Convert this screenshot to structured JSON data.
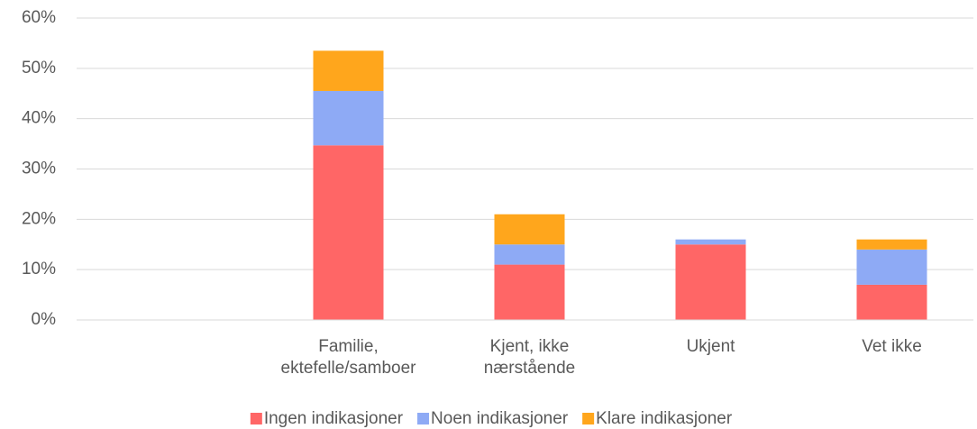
{
  "chart_data": {
    "type": "stacked_bar",
    "categories": [
      null,
      "Familie, ektefelle/samboer",
      "Kjent, ikke nærstående",
      "Ukjent",
      "Vet ikke"
    ],
    "series": [
      {
        "name": "Ingen indikasjoner",
        "color": "#ff6666",
        "values": [
          null,
          34.7,
          11,
          15,
          7
        ]
      },
      {
        "name": "Noen indikasjoner",
        "color": "#8eaaf5",
        "values": [
          null,
          10.8,
          4,
          1,
          7
        ]
      },
      {
        "name": "Klare indikasjoner",
        "color": "#ffa61c",
        "values": [
          null,
          8,
          6,
          0,
          2
        ]
      }
    ],
    "ylim": [
      0,
      60
    ],
    "yticks": [
      {
        "value": 0,
        "label": "0%"
      },
      {
        "value": 10,
        "label": "10%"
      },
      {
        "value": 20,
        "label": "20%"
      },
      {
        "value": 30,
        "label": "30%"
      },
      {
        "value": 40,
        "label": "40%"
      },
      {
        "value": 50,
        "label": "50%"
      },
      {
        "value": 60,
        "label": "60%"
      }
    ],
    "grid": true,
    "legend": "bottom"
  }
}
